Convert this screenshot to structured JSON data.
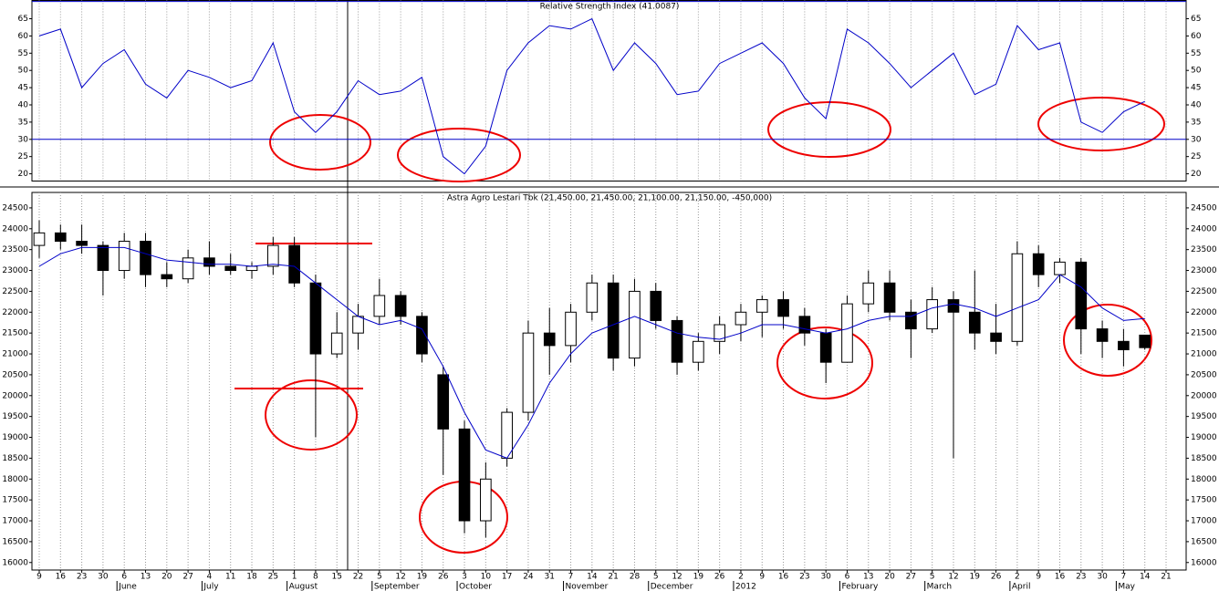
{
  "chart_data": [
    {
      "type": "line",
      "title": "Relative Strength Index (41.0087)",
      "color": "#0000c8",
      "values": [
        60,
        62,
        45,
        52,
        56,
        46,
        42,
        50,
        48,
        45,
        47,
        58,
        38,
        32,
        38,
        47,
        43,
        44,
        48,
        25,
        20,
        28,
        50,
        58,
        63,
        62,
        65,
        50,
        58,
        52,
        43,
        44,
        52,
        55,
        58,
        52,
        42,
        36,
        62,
        58,
        52,
        45,
        50,
        55,
        43,
        46,
        63,
        56,
        58,
        35,
        32,
        38,
        41,
        null
      ],
      "levels": [
        30,
        70
      ],
      "ylim": [
        17.9,
        70.3
      ],
      "yticks": [
        20,
        25,
        30,
        35,
        40,
        45,
        50,
        55,
        60,
        65
      ],
      "grid": true
    },
    {
      "type": "candlestick",
      "title": "Astra Agro Lestari Tbk (21,450.00, 21,450.00, 21,100.00, 21,150.00, -450,000)",
      "categories": [
        "9",
        "16",
        "23",
        "30",
        "6",
        "13",
        "20",
        "27",
        "4",
        "11",
        "18",
        "25",
        "1",
        "8",
        "15",
        "22",
        "5",
        "12",
        "19",
        "26",
        "3",
        "10",
        "17",
        "24",
        "31",
        "7",
        "14",
        "21",
        "28",
        "5",
        "12",
        "19",
        "26",
        "2",
        "9",
        "16",
        "23",
        "30",
        "6",
        "13",
        "20",
        "27",
        "5",
        "12",
        "19",
        "26",
        "2",
        "9",
        "16",
        "23",
        "30",
        "7",
        "14",
        "21"
      ],
      "months": [
        "June",
        "July",
        "August",
        "September",
        "October",
        "November",
        "December",
        "2012",
        "February",
        "March",
        "April",
        "May"
      ],
      "open": [
        23600,
        23900,
        23700,
        23600,
        23000,
        23700,
        22900,
        22800,
        23300,
        23100,
        23000,
        23100,
        23600,
        22700,
        21000,
        21500,
        21900,
        22400,
        21900,
        20500,
        19200,
        17000,
        18500,
        19600,
        21500,
        21200,
        22000,
        22700,
        20900,
        22500,
        21800,
        20800,
        21300,
        21700,
        22000,
        22300,
        21900,
        21500,
        20800,
        22200,
        22700,
        22000,
        21600,
        22300,
        22000,
        21500,
        21300,
        23400,
        22900,
        23200,
        21600,
        21300,
        21450,
        null
      ],
      "high": [
        24200,
        24100,
        24100,
        23700,
        23900,
        23900,
        23200,
        23500,
        23700,
        23400,
        23200,
        23800,
        23800,
        22900,
        22000,
        22200,
        22800,
        22500,
        22000,
        20700,
        19400,
        18400,
        19700,
        21800,
        22100,
        22200,
        22900,
        22900,
        22800,
        22700,
        21900,
        21500,
        21900,
        22200,
        22400,
        22500,
        22100,
        21600,
        22400,
        23000,
        23000,
        22300,
        22600,
        22500,
        23000,
        22200,
        23700,
        23600,
        23300,
        23300,
        21800,
        21600,
        21450,
        null
      ],
      "low": [
        23300,
        23500,
        23400,
        22400,
        22800,
        22600,
        22600,
        22700,
        22900,
        22900,
        22800,
        22900,
        22600,
        19000,
        20900,
        21100,
        21700,
        21700,
        20800,
        18100,
        16700,
        16600,
        18300,
        19400,
        20500,
        20800,
        21800,
        20600,
        20700,
        21600,
        20500,
        20600,
        21000,
        21300,
        21400,
        21600,
        21200,
        20300,
        20800,
        22000,
        21800,
        20900,
        21500,
        18500,
        21100,
        21000,
        21200,
        22600,
        22700,
        21000,
        20900,
        20700,
        21100,
        null
      ],
      "close": [
        23900,
        23700,
        23600,
        23000,
        23700,
        22900,
        22800,
        23300,
        23100,
        23000,
        23100,
        23600,
        22700,
        21000,
        21500,
        21900,
        22400,
        21900,
        21000,
        19200,
        17000,
        18000,
        19600,
        21500,
        21200,
        22000,
        22700,
        20900,
        22500,
        21800,
        20800,
        21300,
        21700,
        22000,
        22300,
        21900,
        21500,
        20800,
        22200,
        22700,
        22000,
        21600,
        22300,
        22000,
        21500,
        21300,
        23400,
        22900,
        23200,
        21600,
        21300,
        21100,
        21150,
        null
      ],
      "ma": {
        "color": "#0000c8",
        "values": [
          23100,
          23400,
          23550,
          23550,
          23550,
          23400,
          23250,
          23200,
          23150,
          23150,
          23100,
          23150,
          23100,
          22700,
          22300,
          21900,
          21700,
          21800,
          21600,
          20700,
          19600,
          18700,
          18500,
          19300,
          20300,
          21000,
          21500,
          21700,
          21900,
          21700,
          21500,
          21400,
          21350,
          21500,
          21700,
          21700,
          21600,
          21500,
          21600,
          21800,
          21900,
          21900,
          22100,
          22200,
          22100,
          21900,
          22100,
          22300,
          22900,
          22600,
          22100,
          21800,
          21850,
          null
        ]
      },
      "ylim": [
        15820,
        24870
      ],
      "yticks": [
        16000,
        16500,
        17000,
        17500,
        18000,
        18500,
        19000,
        19500,
        20000,
        20500,
        21000,
        21500,
        22000,
        22500,
        23000,
        23500,
        24000,
        24500
      ],
      "grid": true
    }
  ]
}
